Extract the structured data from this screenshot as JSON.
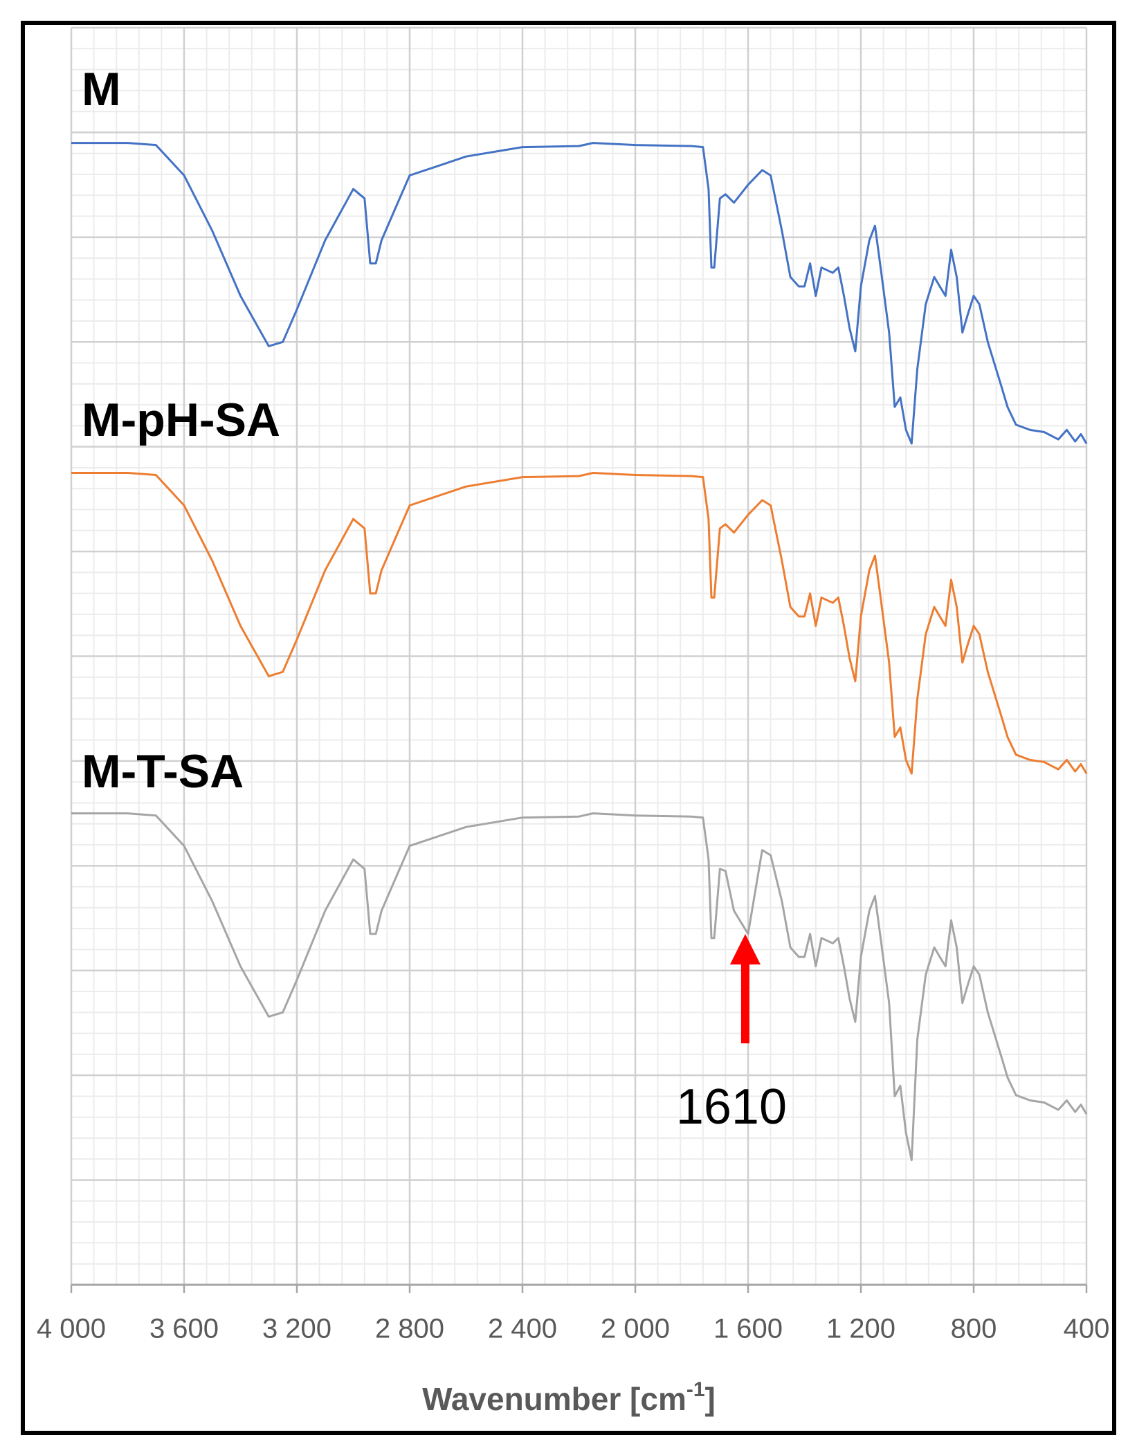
{
  "chart_data": {
    "type": "line",
    "x_label": "Wavenumber [cm",
    "x_label_sup": "-1",
    "x_label_end": "]",
    "x": [
      4000,
      3800,
      3700,
      3600,
      3500,
      3400,
      3300,
      3250,
      3200,
      3100,
      3000,
      2960,
      2940,
      2920,
      2900,
      2850,
      2800,
      2700,
      2600,
      2400,
      2200,
      2150,
      2000,
      1800,
      1760,
      1740,
      1730,
      1720,
      1700,
      1680,
      1650,
      1600,
      1550,
      1520,
      1480,
      1450,
      1420,
      1400,
      1380,
      1360,
      1340,
      1300,
      1280,
      1260,
      1240,
      1220,
      1200,
      1170,
      1150,
      1130,
      1100,
      1080,
      1060,
      1040,
      1020,
      1000,
      970,
      940,
      920,
      900,
      880,
      860,
      840,
      820,
      800,
      780,
      750,
      700,
      680,
      650,
      600,
      550,
      500,
      470,
      440,
      420,
      400
    ],
    "series": [
      {
        "name": "M",
        "color": "#4472c4",
        "values": [
          10.9,
          10.9,
          10.88,
          10.59,
          10.06,
          9.44,
          8.96,
          9.0,
          9.31,
          9.97,
          10.46,
          10.37,
          9.75,
          9.75,
          9.97,
          10.28,
          10.59,
          10.68,
          10.77,
          10.86,
          10.87,
          10.9,
          10.88,
          10.87,
          10.86,
          10.46,
          9.71,
          9.71,
          10.37,
          10.41,
          10.33,
          10.5,
          10.64,
          10.59,
          10.06,
          9.62,
          9.53,
          9.53,
          9.75,
          9.44,
          9.71,
          9.66,
          9.71,
          9.44,
          9.13,
          8.91,
          9.53,
          9.97,
          10.11,
          9.71,
          9.09,
          8.38,
          8.47,
          8.16,
          8.03,
          8.74,
          9.36,
          9.62,
          9.53,
          9.44,
          9.88,
          9.62,
          9.09,
          9.27,
          9.44,
          9.36,
          9.0,
          8.56,
          8.38,
          8.21,
          8.16,
          8.14,
          8.07,
          8.16,
          8.05,
          8.12,
          8.03
        ]
      },
      {
        "name": "M-pH-SA",
        "color": "#ed7d31",
        "values": [
          7.75,
          7.75,
          7.73,
          7.44,
          6.91,
          6.29,
          5.81,
          5.85,
          6.16,
          6.82,
          7.31,
          7.22,
          6.6,
          6.6,
          6.82,
          7.13,
          7.44,
          7.53,
          7.62,
          7.71,
          7.72,
          7.75,
          7.73,
          7.72,
          7.71,
          7.31,
          6.56,
          6.56,
          7.22,
          7.26,
          7.18,
          7.35,
          7.49,
          7.44,
          6.91,
          6.47,
          6.38,
          6.38,
          6.6,
          6.29,
          6.56,
          6.51,
          6.56,
          6.29,
          5.98,
          5.76,
          6.38,
          6.82,
          6.96,
          6.56,
          5.94,
          5.23,
          5.32,
          5.01,
          4.88,
          5.59,
          6.21,
          6.47,
          6.38,
          6.29,
          6.73,
          6.47,
          5.94,
          6.12,
          6.29,
          6.21,
          5.85,
          5.41,
          5.23,
          5.06,
          5.01,
          4.99,
          4.92,
          5.01,
          4.9,
          4.97,
          4.88
        ]
      },
      {
        "name": "M-T-SA",
        "color": "#a5a5a5",
        "values": [
          4.5,
          4.5,
          4.48,
          4.19,
          3.66,
          3.04,
          2.56,
          2.6,
          2.91,
          3.57,
          4.06,
          3.97,
          3.35,
          3.35,
          3.57,
          3.88,
          4.19,
          4.28,
          4.37,
          4.46,
          4.47,
          4.5,
          4.48,
          4.47,
          4.46,
          4.06,
          3.31,
          3.31,
          3.97,
          3.95,
          3.57,
          3.35,
          4.15,
          4.1,
          3.66,
          3.22,
          3.13,
          3.13,
          3.35,
          3.04,
          3.31,
          3.26,
          3.31,
          3.04,
          2.73,
          2.51,
          3.13,
          3.57,
          3.71,
          3.31,
          2.69,
          1.8,
          1.9,
          1.45,
          1.19,
          2.34,
          2.96,
          3.22,
          3.13,
          3.04,
          3.48,
          3.22,
          2.69,
          2.87,
          3.04,
          2.96,
          2.6,
          2.16,
          1.98,
          1.81,
          1.76,
          1.74,
          1.67,
          1.76,
          1.65,
          1.72,
          1.63
        ]
      }
    ],
    "xlim": [
      4000,
      400
    ],
    "xticks": [
      {
        "value": 4000,
        "label": "4 000"
      },
      {
        "value": 3600,
        "label": "3 600"
      },
      {
        "value": 3200,
        "label": "3 200"
      },
      {
        "value": 2800,
        "label": "2 800"
      },
      {
        "value": 2400,
        "label": "2 400"
      },
      {
        "value": 2000,
        "label": "2 000"
      },
      {
        "value": 1600,
        "label": "1 600"
      },
      {
        "value": 1200,
        "label": "1 200"
      },
      800,
      400
    ],
    "ylim": [
      0,
      12
    ],
    "yticks": [
      0,
      1,
      2,
      3,
      4,
      5,
      6,
      7,
      8,
      9,
      10,
      11,
      12
    ],
    "grid": true,
    "annotations": [
      {
        "x": 1610,
        "color": "#ff0000"
      }
    ]
  }
}
